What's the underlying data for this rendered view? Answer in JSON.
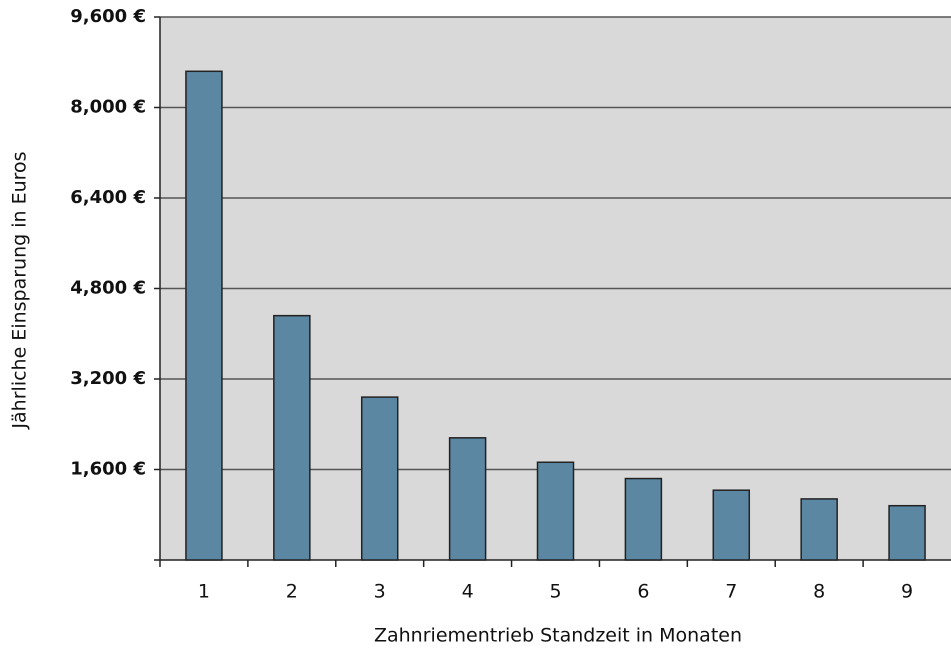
{
  "chart_data": {
    "type": "bar",
    "x_label": "Zahnriementrieb Standzeit in Monaten",
    "y_label": "Jährliche Einsparung in Euros",
    "categories": [
      "1",
      "2",
      "3",
      "4",
      "5",
      "6",
      "7",
      "8",
      "9"
    ],
    "values": [
      8640,
      4320,
      2880,
      2160,
      1728,
      1440,
      1234,
      1080,
      960
    ],
    "color": "#5b87a3",
    "ylim": [
      0,
      9600
    ],
    "yticks": [
      {
        "value": 1600,
        "label": "1,600 €"
      },
      {
        "value": 3200,
        "label": "3,200 €"
      },
      {
        "value": 4800,
        "label": "4,800 €"
      },
      {
        "value": 6400,
        "label": "6,400 €"
      },
      {
        "value": 8000,
        "label": "8,000 €"
      },
      {
        "value": 9600,
        "label": "9,600 €"
      }
    ],
    "grid": true
  }
}
